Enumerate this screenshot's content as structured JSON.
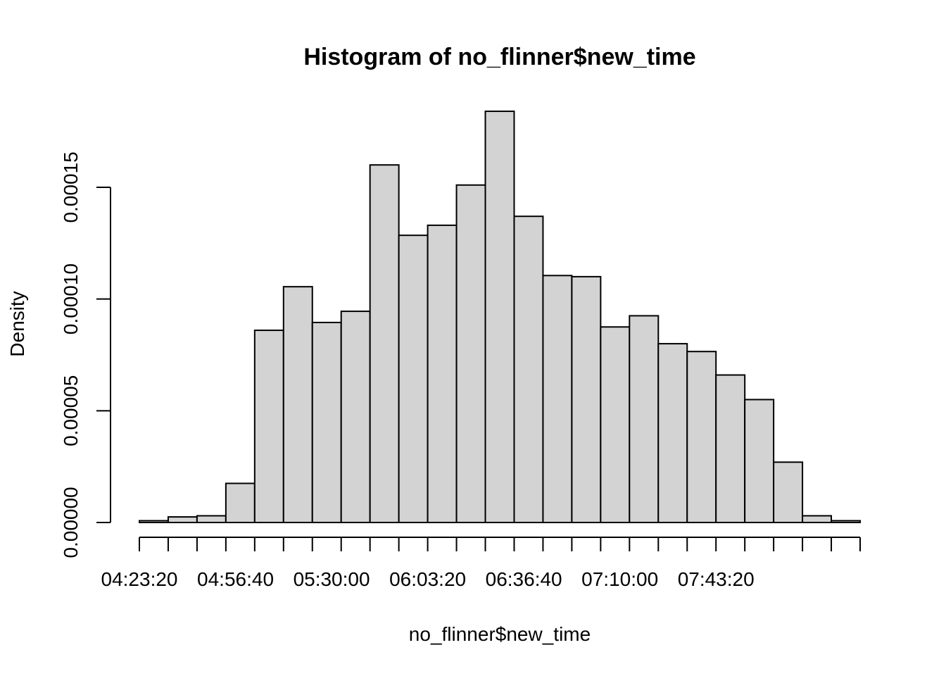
{
  "chart_data": {
    "type": "bar",
    "title": "Histogram of no_flinner$new_time",
    "xlabel": "no_flinner$new_time",
    "ylabel": "Density",
    "bin_width_seconds": 600,
    "x_range": [
      "04:23:20",
      "07:43:20"
    ],
    "ylim": [
      0,
      0.00019
    ],
    "x_ticks": [
      "04:23:20",
      "04:56:40",
      "05:30:00",
      "06:03:20",
      "06:36:40",
      "07:10:00",
      "07:43:20"
    ],
    "y_ticks": [
      "0.00000",
      "0.00005",
      "0.00010",
      "0.00015"
    ],
    "y_tick_values": [
      0,
      5e-05,
      0.0001,
      0.00015
    ],
    "bins": [
      {
        "start": "04:23:20",
        "end": "04:33:20",
        "value": 8e-07
      },
      {
        "start": "04:33:20",
        "end": "04:43:20",
        "value": 2.5e-06
      },
      {
        "start": "04:43:20",
        "end": "04:53:20",
        "value": 3e-06
      },
      {
        "start": "04:53:20",
        "end": "05:03:20",
        "value": 1.75e-05
      },
      {
        "start": "05:03:20",
        "end": "05:13:20",
        "value": 8.6e-05
      },
      {
        "start": "05:13:20",
        "end": "05:23:20",
        "value": 0.0001055
      },
      {
        "start": "05:23:20",
        "end": "05:33:20",
        "value": 8.95e-05
      },
      {
        "start": "05:33:20",
        "end": "05:43:20",
        "value": 9.45e-05
      },
      {
        "start": "05:43:20",
        "end": "05:53:20",
        "value": 0.00016
      },
      {
        "start": "05:53:20",
        "end": "06:03:20",
        "value": 0.0001285
      },
      {
        "start": "06:03:20",
        "end": "06:13:20",
        "value": 0.000133
      },
      {
        "start": "06:13:20",
        "end": "06:23:20",
        "value": 0.000151
      },
      {
        "start": "06:23:20",
        "end": "06:33:20",
        "value": 0.000184
      },
      {
        "start": "06:33:20",
        "end": "06:43:20",
        "value": 0.000137
      },
      {
        "start": "06:43:20",
        "end": "06:53:20",
        "value": 0.0001105
      },
      {
        "start": "06:53:20",
        "end": "07:03:20",
        "value": 0.00011
      },
      {
        "start": "07:03:20",
        "end": "07:13:20",
        "value": 8.75e-05
      },
      {
        "start": "07:13:20",
        "end": "07:23:20",
        "value": 9.25e-05
      },
      {
        "start": "07:23:20",
        "end": "07:33:20",
        "value": 8e-05
      },
      {
        "start": "07:33:20",
        "end": "07:43:20",
        "value": 7.65e-05
      },
      {
        "start": "07:43:20",
        "end": "07:53:20",
        "value": 6.6e-05
      },
      {
        "start": "07:53:20",
        "end": "08:03:20",
        "value": 5.5e-05
      },
      {
        "start": "08:03:20",
        "end": "08:13:20",
        "value": 2.7e-05
      },
      {
        "start": "08:13:20",
        "end": "08:23:20",
        "value": 3e-06
      },
      {
        "start": "08:23:20",
        "end": "08:33:20",
        "value": 8e-07
      }
    ],
    "bar_fill": "#d3d3d3",
    "bar_stroke": "#000000",
    "grid": false
  }
}
